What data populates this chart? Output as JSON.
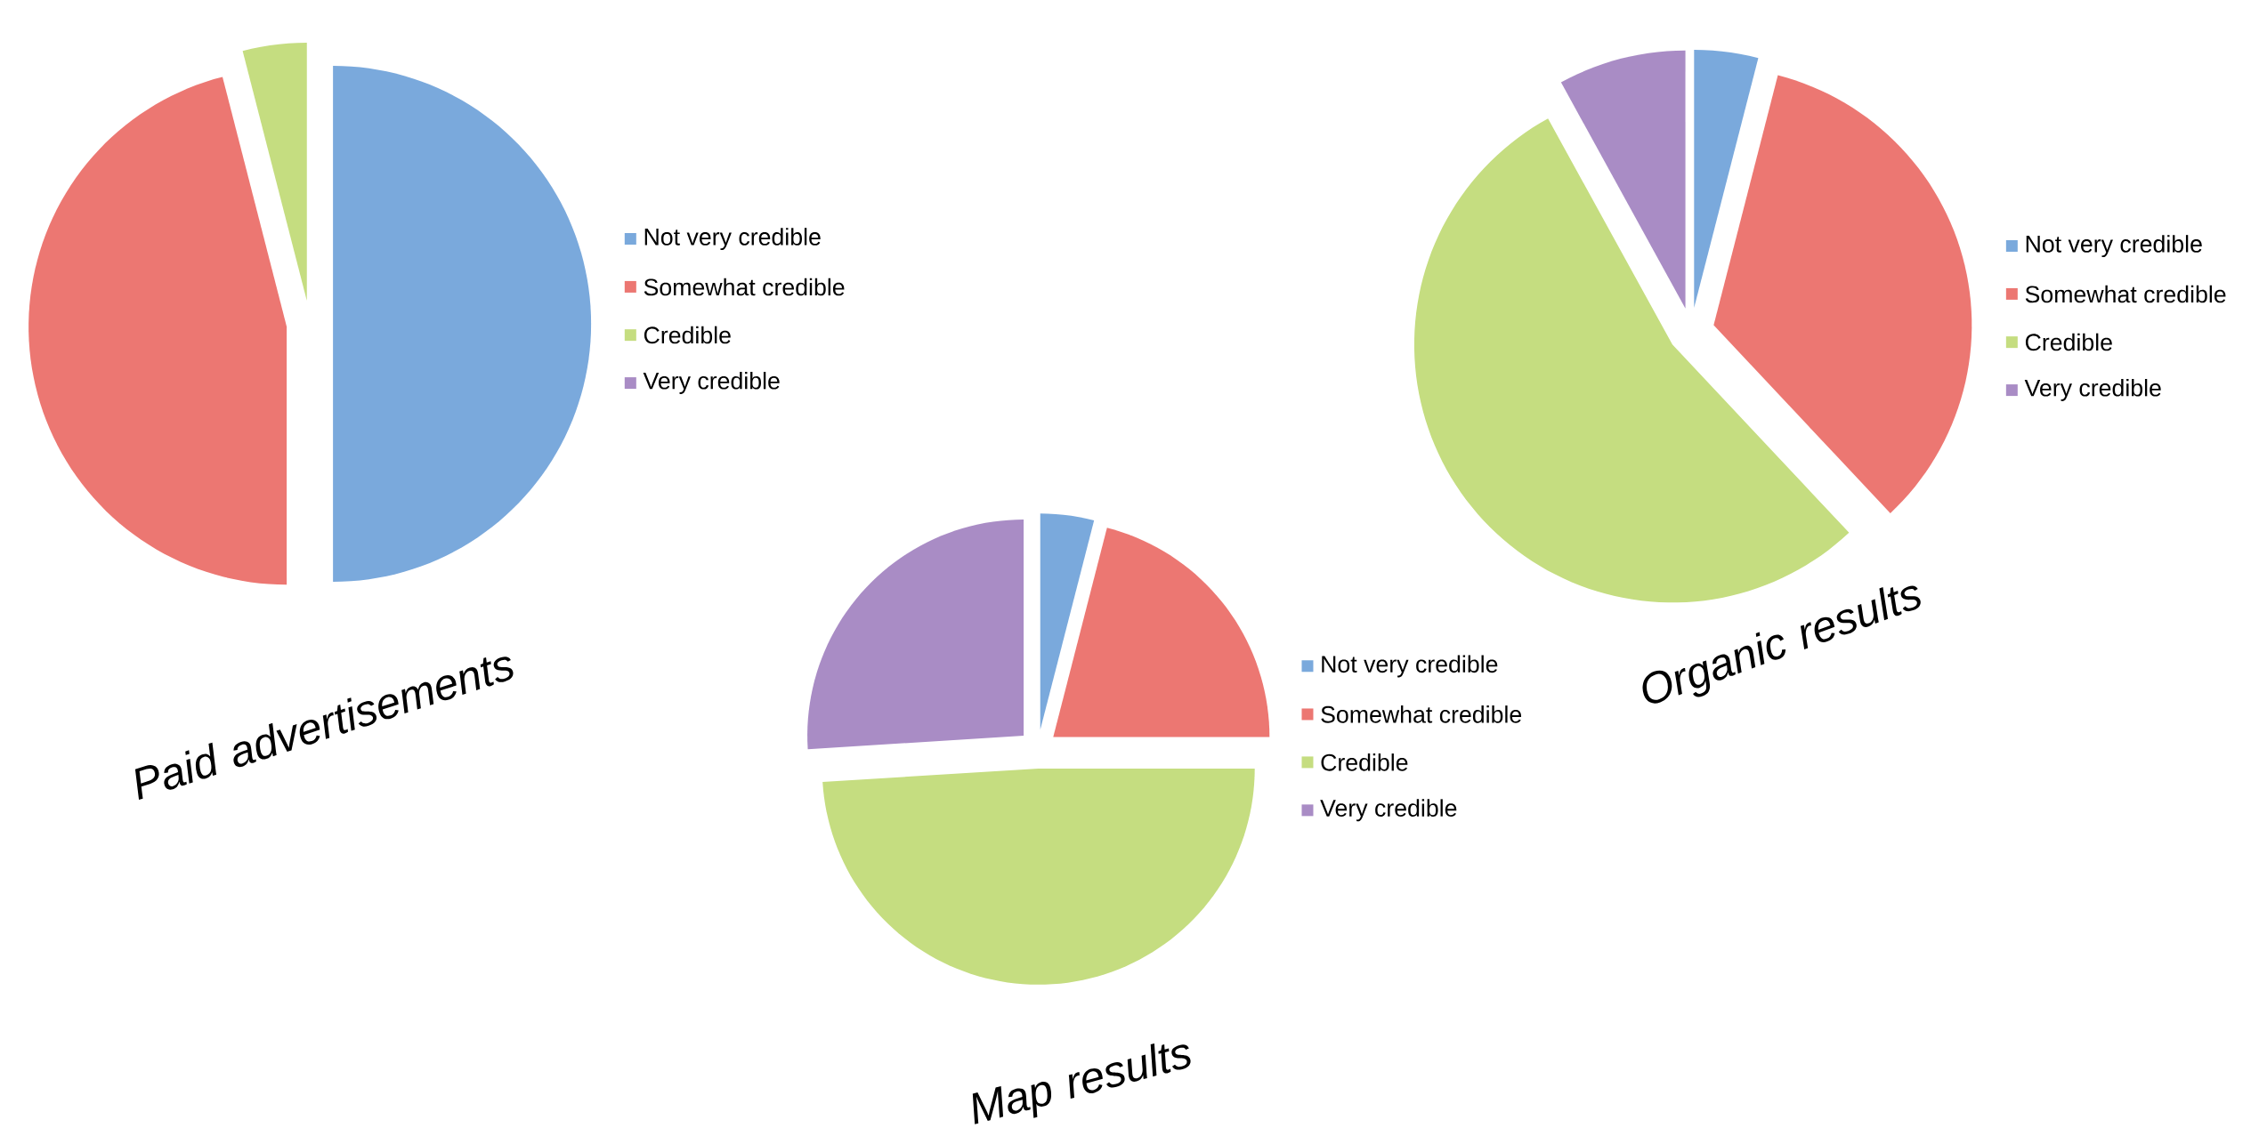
{
  "chart_data": [
    {
      "type": "pie",
      "title": "Paid advertisements",
      "categories": [
        "Not very credible",
        "Somewhat credible",
        "Credible",
        "Very credible"
      ],
      "values": [
        50,
        46,
        4,
        0
      ],
      "colors": [
        "#7aa9dc",
        "#ec7772",
        "#c5dd80",
        "#a98cc5"
      ],
      "legend": "right"
    },
    {
      "type": "pie",
      "title": "Map results",
      "categories": [
        "Not very credible",
        "Somewhat credible",
        "Credible",
        "Very credible"
      ],
      "values": [
        4,
        21,
        49,
        26
      ],
      "colors": [
        "#7aa9dc",
        "#ec7772",
        "#c5dd80",
        "#a98cc5"
      ],
      "legend": "right"
    },
    {
      "type": "pie",
      "title": "Organic results",
      "categories": [
        "Not very credible",
        "Somewhat credible",
        "Credible",
        "Very credible"
      ],
      "values": [
        4,
        34,
        54,
        8
      ],
      "colors": [
        "#7aa9dc",
        "#ec7772",
        "#c5dd80",
        "#a98cc5"
      ],
      "legend": "right"
    }
  ]
}
